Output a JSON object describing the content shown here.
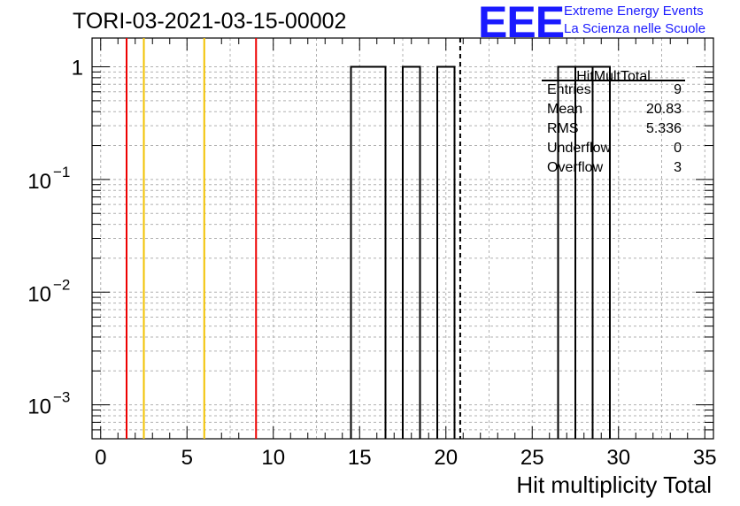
{
  "title": "TORI-03-2021-03-15-00002",
  "logo": {
    "mark": "EEE",
    "line1": "Extreme Energy Events",
    "line2": "La Scienza nelle Scuole"
  },
  "stats_box": {
    "title": "HitMultTotal",
    "rows": [
      {
        "label": "Entries",
        "value": "9"
      },
      {
        "label": "Mean",
        "value": "20.83"
      },
      {
        "label": "RMS",
        "value": "5.336"
      },
      {
        "label": "Underflow",
        "value": "0"
      },
      {
        "label": "Overflow",
        "value": "3"
      }
    ]
  },
  "colors": {
    "red_line": "#ee0000",
    "yellow_line": "#f2c200",
    "histogram": "#000000",
    "grid": "#b0b0b0"
  },
  "chart_data": {
    "type": "bar",
    "title": "TORI-03-2021-03-15-00002",
    "xlabel": "Hit multiplicity Total",
    "ylabel": "",
    "xlim": [
      -0.5,
      35.5
    ],
    "ylim": [
      0.0005,
      1.8
    ],
    "y_scale": "log",
    "grid": true,
    "x_ticks": [
      "0",
      "5",
      "10",
      "15",
      "20",
      "25",
      "30",
      "35"
    ],
    "y_ticks": [
      {
        "value": 1,
        "label": "1",
        "exp": ""
      },
      {
        "value": 0.1,
        "label": "10",
        "exp": "−1"
      },
      {
        "value": 0.01,
        "label": "10",
        "exp": "−2"
      },
      {
        "value": 0.001,
        "label": "10",
        "exp": "−3"
      }
    ],
    "bins": [
      {
        "low": 14.5,
        "high": 16.5,
        "value": 1
      },
      {
        "low": 17.5,
        "high": 18.5,
        "value": 1
      },
      {
        "low": 19.5,
        "high": 20.5,
        "value": 1
      },
      {
        "low": 26.5,
        "high": 27.5,
        "value": 1
      },
      {
        "low": 27.5,
        "high": 28.5,
        "value": 1
      },
      {
        "low": 28.5,
        "high": 29.5,
        "value": 1
      }
    ],
    "vertical_markers": [
      {
        "x": 1.5,
        "color": "red",
        "style": "solid"
      },
      {
        "x": 2.5,
        "color": "yellow",
        "style": "solid"
      },
      {
        "x": 6.0,
        "color": "yellow",
        "style": "solid"
      },
      {
        "x": 9.0,
        "color": "red",
        "style": "solid"
      },
      {
        "x": 20.83,
        "color": "black",
        "style": "dashed"
      }
    ]
  }
}
